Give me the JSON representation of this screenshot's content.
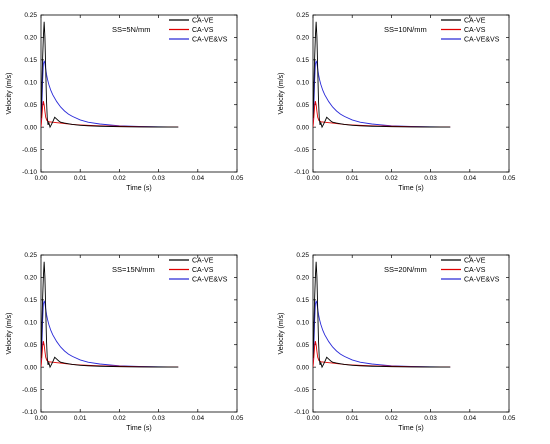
{
  "colors": {
    "CA-VE": "#000000",
    "CA-VS": "#e00000",
    "CA-VE&VS": "#2a2ad8"
  },
  "chart_data": [
    {
      "type": "line",
      "annotation": "SS=5N/mm",
      "xlabel": "Time (s)",
      "ylabel": "Velocity (m/s)",
      "xlim": [
        0,
        0.05
      ],
      "ylim": [
        -0.1,
        0.25
      ],
      "xticks": [
        "0.00",
        "0.01",
        "0.02",
        "0.03",
        "0.04",
        "0.05"
      ],
      "yticks": [
        "-0.10",
        "-0.05",
        "0.00",
        "0.05",
        "0.10",
        "0.15",
        "0.20",
        "0.25"
      ],
      "legend_position": "top-right",
      "series": [
        {
          "name": "CA-VE",
          "x": [
            0,
            0.0002,
            0.0004,
            0.0006,
            0.0008,
            0.001,
            0.0012,
            0.0014,
            0.0016,
            0.0018,
            0.002,
            0.0023,
            0.0026,
            0.003,
            0.0035,
            0.004,
            0.0045,
            0.005,
            0.006,
            0.008,
            0.01,
            0.012,
            0.015,
            0.02,
            0.025,
            0.03,
            0.035
          ],
          "y": [
            0.02,
            0.08,
            0.15,
            0.2,
            0.235,
            0.2,
            0.13,
            0.06,
            0.02,
            0.005,
            0.01,
            0.0,
            0.005,
            0.012,
            0.022,
            0.018,
            0.014,
            0.011,
            0.009,
            0.006,
            0.004,
            0.003,
            0.002,
            0.001,
            0.0005,
            0.0003,
            0.0001
          ]
        },
        {
          "name": "CA-VS",
          "x": [
            0,
            0.0002,
            0.0004,
            0.0006,
            0.0008,
            0.001,
            0.0012,
            0.0015,
            0.002,
            0.003,
            0.004,
            0.005,
            0.006,
            0.008,
            0.01,
            0.012,
            0.015,
            0.02,
            0.025,
            0.03,
            0.035
          ],
          "y": [
            0.0,
            0.02,
            0.045,
            0.058,
            0.05,
            0.035,
            0.022,
            0.015,
            0.012,
            0.011,
            0.01,
            0.009,
            0.008,
            0.006,
            0.005,
            0.004,
            0.003,
            0.002,
            0.001,
            0.0005,
            0.0002
          ]
        },
        {
          "name": "CA-VE&VS",
          "x": [
            0,
            0.0002,
            0.0004,
            0.0006,
            0.0008,
            0.001,
            0.0012,
            0.0014,
            0.0017,
            0.002,
            0.0025,
            0.003,
            0.004,
            0.005,
            0.006,
            0.007,
            0.008,
            0.01,
            0.012,
            0.015,
            0.02,
            0.025,
            0.03,
            0.035
          ],
          "y": [
            0.0,
            0.04,
            0.1,
            0.14,
            0.148,
            0.142,
            0.13,
            0.118,
            0.105,
            0.095,
            0.082,
            0.072,
            0.057,
            0.045,
            0.036,
            0.029,
            0.024,
            0.016,
            0.011,
            0.007,
            0.003,
            0.0015,
            0.0006,
            0.0002
          ]
        }
      ]
    },
    {
      "type": "line",
      "annotation": "SS=10N/mm",
      "xlabel": "Time (s)",
      "ylabel": "Velocity (m/s)",
      "xlim": [
        0,
        0.05
      ],
      "ylim": [
        -0.1,
        0.25
      ],
      "xticks": [
        "0.00",
        "0.01",
        "0.02",
        "0.03",
        "0.04",
        "0.05"
      ],
      "yticks": [
        "-0.10",
        "-0.05",
        "0.00",
        "0.05",
        "0.10",
        "0.15",
        "0.20",
        "0.25"
      ],
      "legend_position": "top-right",
      "series": [
        {
          "name": "CA-VE",
          "x": [
            0,
            0.0002,
            0.0004,
            0.0006,
            0.0008,
            0.001,
            0.0012,
            0.0014,
            0.0016,
            0.0018,
            0.002,
            0.0023,
            0.0026,
            0.003,
            0.0035,
            0.004,
            0.0045,
            0.005,
            0.006,
            0.008,
            0.01,
            0.012,
            0.015,
            0.02,
            0.025,
            0.03,
            0.035
          ],
          "y": [
            0.02,
            0.08,
            0.15,
            0.2,
            0.235,
            0.2,
            0.13,
            0.06,
            0.02,
            0.005,
            0.01,
            0.0,
            0.005,
            0.012,
            0.022,
            0.018,
            0.014,
            0.011,
            0.009,
            0.006,
            0.004,
            0.003,
            0.002,
            0.001,
            0.0005,
            0.0003,
            0.0001
          ]
        },
        {
          "name": "CA-VS",
          "x": [
            0,
            0.0002,
            0.0004,
            0.0006,
            0.0008,
            0.001,
            0.0012,
            0.0015,
            0.002,
            0.003,
            0.004,
            0.005,
            0.006,
            0.008,
            0.01,
            0.012,
            0.015,
            0.02,
            0.025,
            0.03,
            0.035
          ],
          "y": [
            0.0,
            0.02,
            0.045,
            0.058,
            0.05,
            0.035,
            0.022,
            0.015,
            0.012,
            0.011,
            0.01,
            0.009,
            0.008,
            0.006,
            0.005,
            0.004,
            0.003,
            0.002,
            0.001,
            0.0005,
            0.0002
          ]
        },
        {
          "name": "CA-VE&VS",
          "x": [
            0,
            0.0002,
            0.0004,
            0.0006,
            0.0008,
            0.001,
            0.0012,
            0.0014,
            0.0017,
            0.002,
            0.0025,
            0.003,
            0.004,
            0.005,
            0.006,
            0.007,
            0.008,
            0.01,
            0.012,
            0.015,
            0.02,
            0.025,
            0.03,
            0.035
          ],
          "y": [
            0.0,
            0.04,
            0.1,
            0.14,
            0.148,
            0.142,
            0.13,
            0.118,
            0.105,
            0.095,
            0.082,
            0.072,
            0.057,
            0.045,
            0.036,
            0.029,
            0.024,
            0.016,
            0.011,
            0.007,
            0.003,
            0.0015,
            0.0006,
            0.0002
          ]
        }
      ]
    },
    {
      "type": "line",
      "annotation": "SS=15N/mm",
      "xlabel": "Time (s)",
      "ylabel": "Velocity (m/s)",
      "xlim": [
        0,
        0.05
      ],
      "ylim": [
        -0.1,
        0.25
      ],
      "xticks": [
        "0.00",
        "0.01",
        "0.02",
        "0.03",
        "0.04",
        "0.05"
      ],
      "yticks": [
        "-0.10",
        "-0.05",
        "0.00",
        "0.05",
        "0.10",
        "0.15",
        "0.20",
        "0.25"
      ],
      "legend_position": "top-right",
      "series": [
        {
          "name": "CA-VE",
          "x": [
            0,
            0.0002,
            0.0004,
            0.0006,
            0.0008,
            0.001,
            0.0012,
            0.0014,
            0.0016,
            0.0018,
            0.002,
            0.0023,
            0.0026,
            0.003,
            0.0035,
            0.004,
            0.0045,
            0.005,
            0.006,
            0.008,
            0.01,
            0.012,
            0.015,
            0.02,
            0.025,
            0.03,
            0.035
          ],
          "y": [
            0.02,
            0.08,
            0.15,
            0.2,
            0.235,
            0.2,
            0.13,
            0.06,
            0.02,
            0.005,
            0.01,
            0.0,
            0.005,
            0.012,
            0.022,
            0.018,
            0.014,
            0.011,
            0.009,
            0.006,
            0.004,
            0.003,
            0.002,
            0.001,
            0.0005,
            0.0003,
            0.0001
          ]
        },
        {
          "name": "CA-VS",
          "x": [
            0,
            0.0002,
            0.0004,
            0.0006,
            0.0008,
            0.001,
            0.0012,
            0.0015,
            0.002,
            0.003,
            0.004,
            0.005,
            0.006,
            0.008,
            0.01,
            0.012,
            0.015,
            0.02,
            0.025,
            0.03,
            0.035
          ],
          "y": [
            0.0,
            0.02,
            0.045,
            0.058,
            0.05,
            0.035,
            0.022,
            0.015,
            0.012,
            0.011,
            0.01,
            0.009,
            0.008,
            0.006,
            0.005,
            0.004,
            0.003,
            0.002,
            0.001,
            0.0005,
            0.0002
          ]
        },
        {
          "name": "CA-VE&VS",
          "x": [
            0,
            0.0002,
            0.0004,
            0.0006,
            0.0008,
            0.001,
            0.0012,
            0.0014,
            0.0017,
            0.002,
            0.0025,
            0.003,
            0.004,
            0.005,
            0.006,
            0.007,
            0.008,
            0.01,
            0.012,
            0.015,
            0.02,
            0.025,
            0.03,
            0.035
          ],
          "y": [
            0.0,
            0.04,
            0.1,
            0.14,
            0.148,
            0.142,
            0.13,
            0.118,
            0.105,
            0.095,
            0.082,
            0.072,
            0.057,
            0.045,
            0.036,
            0.029,
            0.024,
            0.016,
            0.011,
            0.007,
            0.003,
            0.0015,
            0.0006,
            0.0002
          ]
        }
      ]
    },
    {
      "type": "line",
      "annotation": "SS=20N/mm",
      "xlabel": "Time (s)",
      "ylabel": "Velocity (m/s)",
      "xlim": [
        0,
        0.05
      ],
      "ylim": [
        -0.1,
        0.25
      ],
      "xticks": [
        "0.00",
        "0.01",
        "0.02",
        "0.03",
        "0.04",
        "0.05"
      ],
      "yticks": [
        "-0.10",
        "-0.05",
        "0.00",
        "0.05",
        "0.10",
        "0.15",
        "0.20",
        "0.25"
      ],
      "legend_position": "top-right",
      "series": [
        {
          "name": "CA-VE",
          "x": [
            0,
            0.0002,
            0.0004,
            0.0006,
            0.0008,
            0.001,
            0.0012,
            0.0014,
            0.0016,
            0.0018,
            0.002,
            0.0023,
            0.0026,
            0.003,
            0.0035,
            0.004,
            0.0045,
            0.005,
            0.006,
            0.008,
            0.01,
            0.012,
            0.015,
            0.02,
            0.025,
            0.03,
            0.035
          ],
          "y": [
            0.02,
            0.08,
            0.15,
            0.2,
            0.235,
            0.2,
            0.13,
            0.06,
            0.02,
            0.005,
            0.01,
            0.0,
            0.005,
            0.012,
            0.022,
            0.018,
            0.014,
            0.011,
            0.009,
            0.006,
            0.004,
            0.003,
            0.002,
            0.001,
            0.0005,
            0.0003,
            0.0001
          ]
        },
        {
          "name": "CA-VS",
          "x": [
            0,
            0.0002,
            0.0004,
            0.0006,
            0.0008,
            0.001,
            0.0012,
            0.0015,
            0.002,
            0.003,
            0.004,
            0.005,
            0.006,
            0.008,
            0.01,
            0.012,
            0.015,
            0.02,
            0.025,
            0.03,
            0.035
          ],
          "y": [
            0.0,
            0.02,
            0.045,
            0.058,
            0.05,
            0.035,
            0.022,
            0.015,
            0.012,
            0.011,
            0.01,
            0.009,
            0.008,
            0.006,
            0.005,
            0.004,
            0.003,
            0.002,
            0.001,
            0.0005,
            0.0002
          ]
        },
        {
          "name": "CA-VE&VS",
          "x": [
            0,
            0.0002,
            0.0004,
            0.0006,
            0.0008,
            0.001,
            0.0012,
            0.0014,
            0.0017,
            0.002,
            0.0025,
            0.003,
            0.004,
            0.005,
            0.006,
            0.007,
            0.008,
            0.01,
            0.012,
            0.015,
            0.02,
            0.025,
            0.03,
            0.035
          ],
          "y": [
            0.0,
            0.04,
            0.1,
            0.14,
            0.148,
            0.142,
            0.13,
            0.118,
            0.105,
            0.095,
            0.082,
            0.072,
            0.057,
            0.045,
            0.036,
            0.029,
            0.024,
            0.016,
            0.011,
            0.007,
            0.003,
            0.0015,
            0.0006,
            0.0002
          ]
        }
      ]
    }
  ]
}
